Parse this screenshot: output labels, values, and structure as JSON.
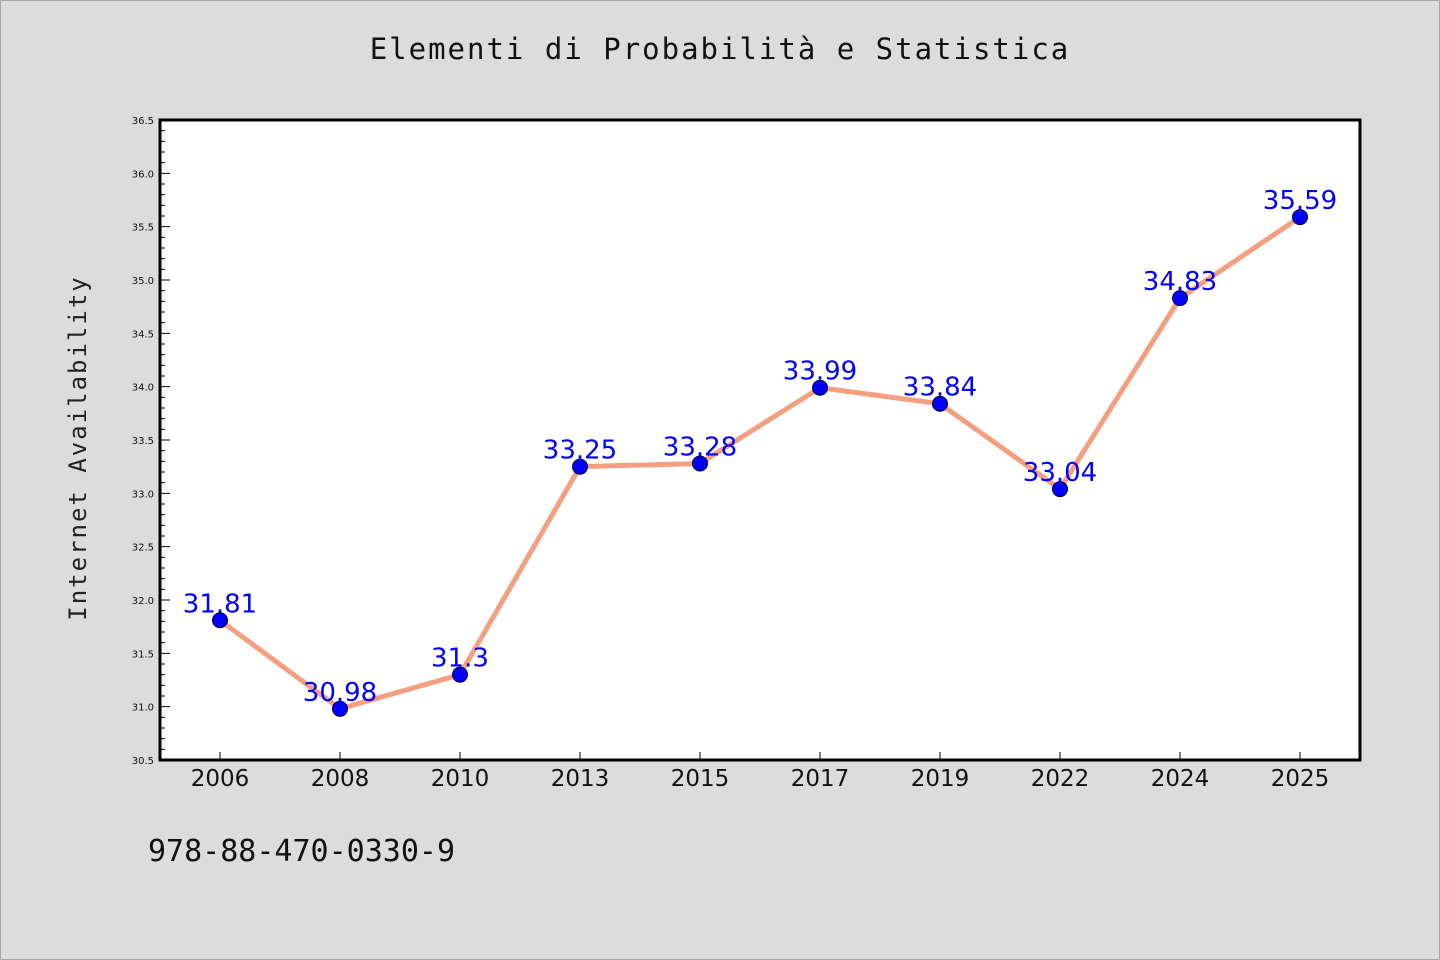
{
  "colors": {
    "background": "#dcdcdc",
    "plot_area": "#ffffff",
    "line": "#f4a080",
    "marker": "#0000ff",
    "data_label": "#0000ff"
  },
  "footer": {
    "isbn": "978-88-470-0330-9"
  },
  "chart_data": {
    "type": "line",
    "title": "Elementi di Probabilità e Statistica",
    "xlabel": "",
    "ylabel": "Internet Availability",
    "categories": [
      "2006",
      "2008",
      "2010",
      "2013",
      "2015",
      "2017",
      "2019",
      "2022",
      "2024",
      "2025"
    ],
    "series": [
      {
        "values": [
          31.81,
          30.98,
          31.3,
          33.25,
          33.28,
          33.99,
          33.84,
          33.04,
          34.83,
          35.59
        ],
        "data_labels": [
          "31.81",
          "30.98",
          "31.3",
          "33.25",
          "33.28",
          "33.99",
          "33.84",
          "33.04",
          "34.83",
          "35.59"
        ]
      }
    ],
    "ylim": [
      30.5,
      36.5
    ],
    "yticks": [
      "30.5",
      "31.0",
      "31.5",
      "32.0",
      "32.5",
      "33.0",
      "33.5",
      "34.0",
      "34.5",
      "35.0",
      "35.5",
      "36.0",
      "36.5"
    ],
    "grid": false,
    "legend": "none"
  }
}
